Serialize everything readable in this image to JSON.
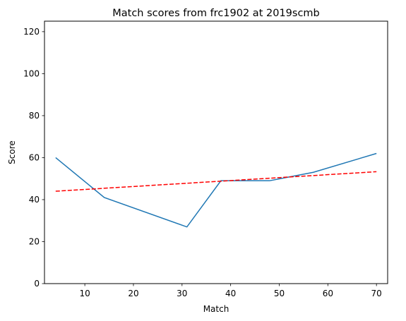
{
  "chart_data": {
    "type": "line",
    "title": "Match scores from frc1902 at 2019scmb",
    "xlabel": "Match",
    "ylabel": "Score",
    "xlim": [
      1.7,
      72.3
    ],
    "ylim": [
      0,
      125
    ],
    "xticks": [
      10,
      20,
      30,
      40,
      50,
      60,
      70
    ],
    "yticks": [
      0,
      20,
      40,
      60,
      80,
      100,
      120
    ],
    "grid": false,
    "legend": "none",
    "series": [
      {
        "x": [
          4,
          14,
          31,
          38,
          48,
          57,
          70
        ],
        "y": [
          60,
          41,
          27,
          49,
          49,
          53,
          62
        ],
        "color": "#1f77b4",
        "style": "solid"
      },
      {
        "x": [
          4,
          70
        ],
        "y": [
          44,
          53.3
        ],
        "color": "#ff0000",
        "style": "dashed"
      }
    ]
  }
}
